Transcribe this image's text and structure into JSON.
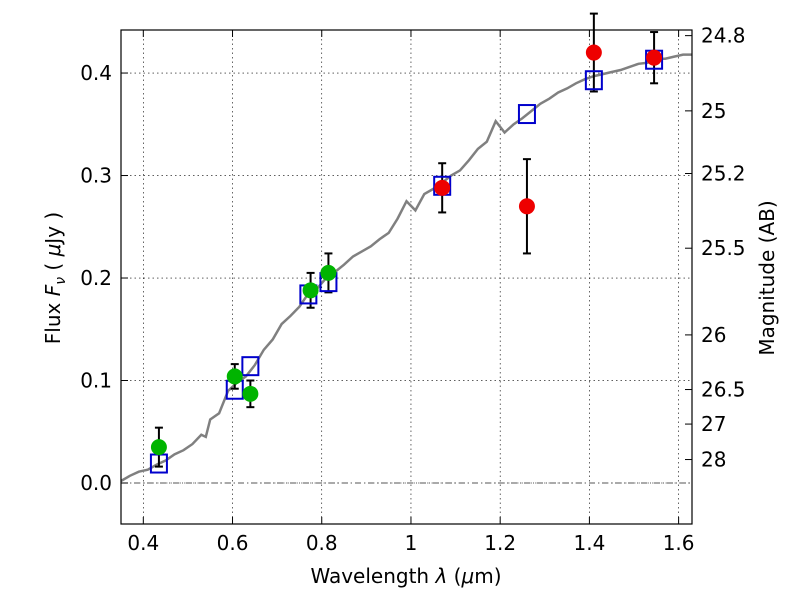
{
  "chart_data": {
    "type": "scatter",
    "xlabel_text": "Wavelength ",
    "xlabel_symbol": "λ",
    "xlabel_unit_open": " (",
    "xlabel_unit_mu": "μ",
    "xlabel_unit_rest": "m)",
    "ylabel_text": "Flux ",
    "ylabel_symbol": "F",
    "ylabel_sub": "ν",
    "ylabel_unit_open": " ( ",
    "ylabel_unit_mu": "μ",
    "ylabel_unit_rest": "Jy )",
    "right_ylabel": "Magnitude (AB)",
    "xlim": [
      0.35,
      1.63
    ],
    "ylim": [
      -0.04,
      0.442
    ],
    "grid": true,
    "x_ticks": [
      {
        "value": 0.4,
        "label": "0.4"
      },
      {
        "value": 0.6,
        "label": "0.6"
      },
      {
        "value": 0.8,
        "label": "0.8"
      },
      {
        "value": 1.0,
        "label": "1"
      },
      {
        "value": 1.2,
        "label": "1.2"
      },
      {
        "value": 1.4,
        "label": "1.4"
      },
      {
        "value": 1.6,
        "label": "1.6"
      }
    ],
    "y_ticks": [
      {
        "value": 0.0,
        "label": "0.0"
      },
      {
        "value": 0.1,
        "label": "0.1"
      },
      {
        "value": 0.2,
        "label": "0.2"
      },
      {
        "value": 0.3,
        "label": "0.3"
      },
      {
        "value": 0.4,
        "label": "0.4"
      }
    ],
    "magnitude_ticks": [
      {
        "flux": 0.4365,
        "label": "24.8"
      },
      {
        "flux": 0.3631,
        "label": "25"
      },
      {
        "flux": 0.302,
        "label": "25.2"
      },
      {
        "flux": 0.2291,
        "label": "25.5"
      },
      {
        "flux": 0.1445,
        "label": "26"
      },
      {
        "flux": 0.0912,
        "label": "26.5"
      },
      {
        "flux": 0.0575,
        "label": "27"
      },
      {
        "flux": 0.0229,
        "label": "28"
      }
    ],
    "model_curve": {
      "color": "#808080",
      "points": [
        [
          0.35,
          0.002
        ],
        [
          0.37,
          0.007
        ],
        [
          0.39,
          0.011
        ],
        [
          0.41,
          0.013
        ],
        [
          0.43,
          0.018
        ],
        [
          0.45,
          0.022
        ],
        [
          0.47,
          0.028
        ],
        [
          0.49,
          0.032
        ],
        [
          0.51,
          0.038
        ],
        [
          0.53,
          0.047
        ],
        [
          0.54,
          0.045
        ],
        [
          0.55,
          0.062
        ],
        [
          0.57,
          0.068
        ],
        [
          0.59,
          0.09
        ],
        [
          0.61,
          0.098
        ],
        [
          0.63,
          0.104
        ],
        [
          0.65,
          0.115
        ],
        [
          0.67,
          0.13
        ],
        [
          0.69,
          0.14
        ],
        [
          0.71,
          0.155
        ],
        [
          0.73,
          0.163
        ],
        [
          0.75,
          0.172
        ],
        [
          0.77,
          0.185
        ],
        [
          0.79,
          0.19
        ],
        [
          0.81,
          0.2
        ],
        [
          0.83,
          0.206
        ],
        [
          0.85,
          0.213
        ],
        [
          0.87,
          0.221
        ],
        [
          0.89,
          0.226
        ],
        [
          0.91,
          0.231
        ],
        [
          0.93,
          0.238
        ],
        [
          0.95,
          0.244
        ],
        [
          0.97,
          0.258
        ],
        [
          0.99,
          0.275
        ],
        [
          1.01,
          0.266
        ],
        [
          1.03,
          0.282
        ],
        [
          1.05,
          0.287
        ],
        [
          1.07,
          0.293
        ],
        [
          1.09,
          0.3
        ],
        [
          1.11,
          0.305
        ],
        [
          1.13,
          0.315
        ],
        [
          1.15,
          0.326
        ],
        [
          1.17,
          0.333
        ],
        [
          1.19,
          0.353
        ],
        [
          1.21,
          0.342
        ],
        [
          1.23,
          0.35
        ],
        [
          1.25,
          0.356
        ],
        [
          1.27,
          0.363
        ],
        [
          1.29,
          0.37
        ],
        [
          1.31,
          0.375
        ],
        [
          1.33,
          0.381
        ],
        [
          1.35,
          0.385
        ],
        [
          1.37,
          0.39
        ],
        [
          1.39,
          0.394
        ],
        [
          1.41,
          0.397
        ],
        [
          1.43,
          0.399
        ],
        [
          1.45,
          0.401
        ],
        [
          1.47,
          0.403
        ],
        [
          1.49,
          0.406
        ],
        [
          1.51,
          0.409
        ],
        [
          1.53,
          0.41
        ],
        [
          1.55,
          0.414
        ],
        [
          1.57,
          0.414
        ],
        [
          1.59,
          0.416
        ],
        [
          1.61,
          0.418
        ],
        [
          1.63,
          0.418
        ]
      ]
    },
    "series": [
      {
        "marker": "open-square",
        "color": "#0000cc",
        "points": [
          [
            0.435,
            0.019
          ],
          [
            0.605,
            0.091
          ],
          [
            0.64,
            0.114
          ],
          [
            0.77,
            0.184
          ],
          [
            0.815,
            0.196
          ],
          [
            1.07,
            0.29
          ],
          [
            1.26,
            0.36
          ],
          [
            1.41,
            0.393
          ],
          [
            1.545,
            0.413
          ]
        ]
      },
      {
        "marker": "filled-circle",
        "color": "#00b400",
        "points": [
          {
            "x": 0.435,
            "y": 0.035,
            "err": 0.019
          },
          {
            "x": 0.605,
            "y": 0.104,
            "err": 0.012
          },
          {
            "x": 0.64,
            "y": 0.087,
            "err": 0.013
          },
          {
            "x": 0.775,
            "y": 0.188,
            "err": 0.017
          },
          {
            "x": 0.815,
            "y": 0.205,
            "err": 0.019
          }
        ]
      },
      {
        "marker": "filled-circle",
        "color": "#ee0000",
        "points": [
          {
            "x": 1.07,
            "y": 0.288,
            "err": 0.024
          },
          {
            "x": 1.26,
            "y": 0.27,
            "err": 0.046
          },
          {
            "x": 1.41,
            "y": 0.42,
            "err": 0.038
          },
          {
            "x": 1.545,
            "y": 0.415,
            "err": 0.025
          }
        ]
      }
    ]
  }
}
